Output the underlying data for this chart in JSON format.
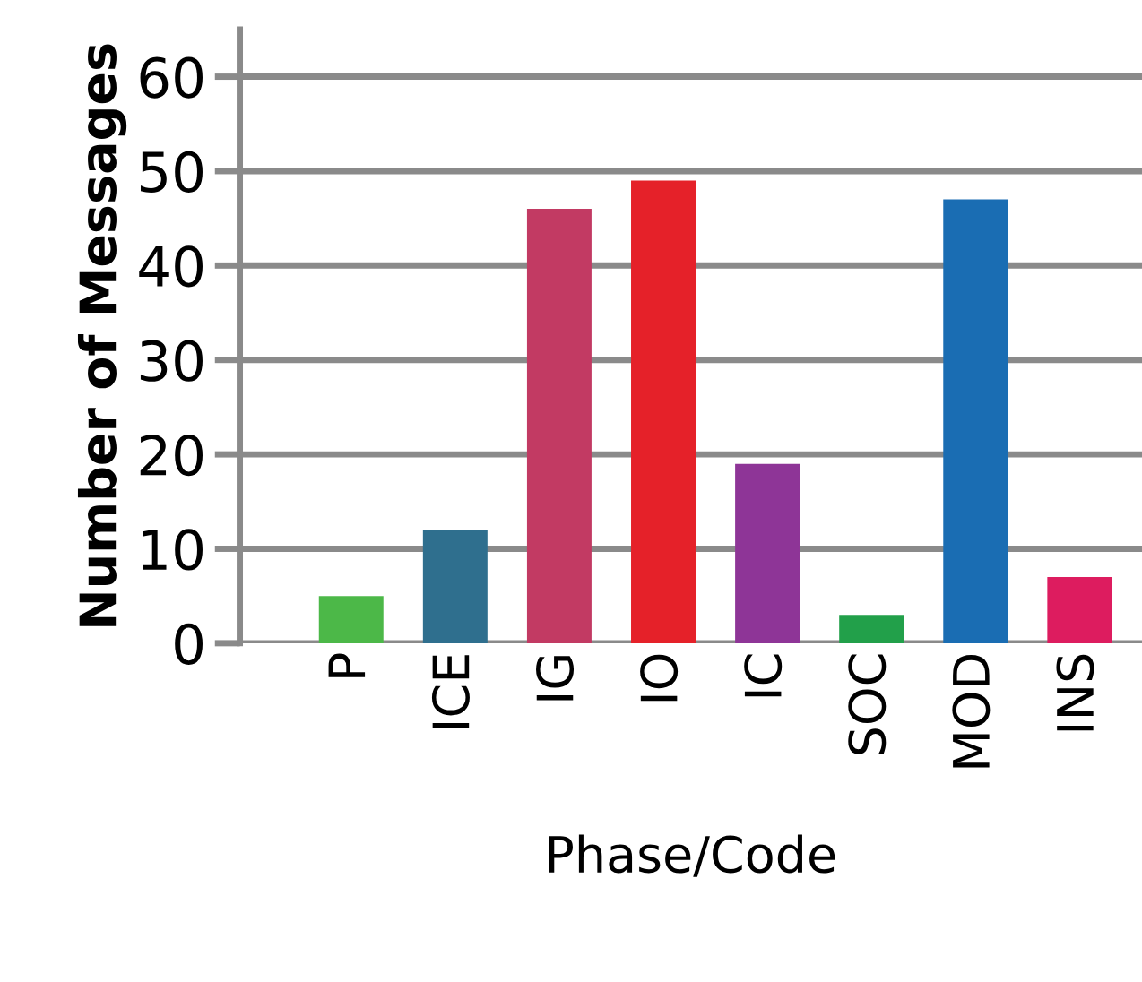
{
  "chart_data": {
    "type": "bar",
    "xlabel": "Phase/Code",
    "ylabel": "Number of Messages",
    "categories": [
      "P",
      "ICE",
      "IG",
      "IO",
      "IC",
      "SOC",
      "MOD",
      "INS"
    ],
    "values": [
      5,
      12,
      46,
      49,
      19,
      3,
      47,
      7
    ],
    "colors": [
      "#4cb848",
      "#2f6f8e",
      "#c23a63",
      "#e52129",
      "#8e3597",
      "#22a04a",
      "#1a6db3",
      "#dd1c5f"
    ],
    "ylim": [
      0,
      65
    ],
    "yticks": [
      0,
      10,
      20,
      30,
      40,
      50,
      60
    ],
    "grid": "y"
  }
}
